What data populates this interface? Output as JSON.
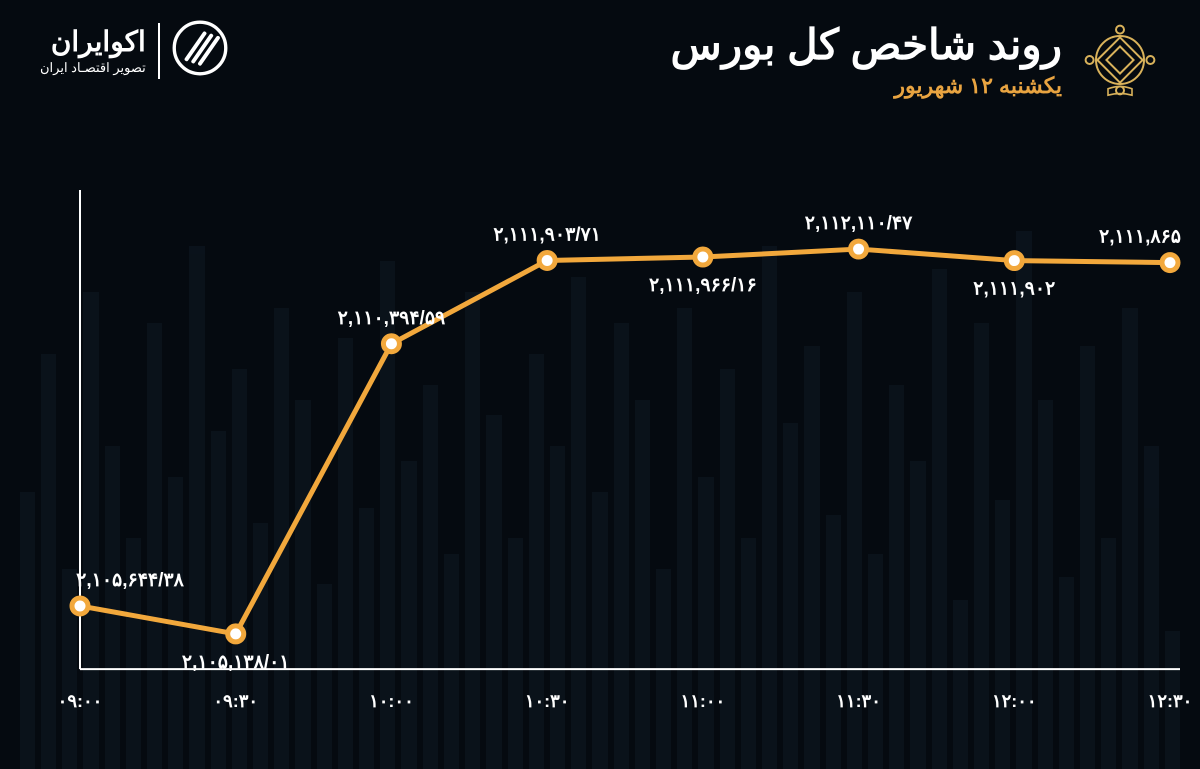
{
  "background_color": "#050a10",
  "bg_bar_color": "#1a2a3a",
  "brand": {
    "name": "اکوایران",
    "tagline": "تصویر اقتصـاد ایران"
  },
  "title": "روند شاخص کل بورس",
  "subtitle": "یکشنبه ۱۲ شهریور",
  "title_color": "#ffffff",
  "subtitle_color": "#e9a441",
  "seo_logo_color": "#d9b25b",
  "chart": {
    "type": "line",
    "line_color": "#f2a83c",
    "line_width": 5,
    "marker_fill": "#ffffff",
    "marker_stroke": "#f2a83c",
    "marker_radius": 8,
    "axis_color": "#ffffff",
    "label_color": "#ffffff",
    "xlabel_color": "#ffffff",
    "y_min": 2104500,
    "y_max": 2113000,
    "x_labels": [
      "۰۹:۰۰",
      "۰۹:۳۰",
      "۱۰:۰۰",
      "۱۰:۳۰",
      "۱۱:۰۰",
      "۱۱:۳۰",
      "۱۲:۰۰",
      "۱۲:۳۰"
    ],
    "points": [
      {
        "value": 2105644.38,
        "label": "۲,۱۰۵,۶۴۴/۳۸",
        "label_pos": "above-left"
      },
      {
        "value": 2105138.01,
        "label": "۲,۱۰۵,۱۳۸/۰۱",
        "label_pos": "below"
      },
      {
        "value": 2110394.59,
        "label": "۲,۱۱۰,۳۹۴/۵۹",
        "label_pos": "above-left"
      },
      {
        "value": 2111903.71,
        "label": "۲,۱۱۱,۹۰۳/۷۱",
        "label_pos": "above"
      },
      {
        "value": 2111966.16,
        "label": "۲,۱۱۱,۹۶۶/۱۶",
        "label_pos": "below"
      },
      {
        "value": 2112110.47,
        "label": "۲,۱۱۲,۱۱۰/۴۷",
        "label_pos": "above"
      },
      {
        "value": 2111902.0,
        "label": "۲,۱۱۱,۹۰۲",
        "label_pos": "below"
      },
      {
        "value": 2111865.0,
        "label": "۲,۱۱۱,۸۶۵",
        "label_pos": "above"
      }
    ]
  },
  "bg_bar_heights_pct": [
    18,
    42,
    60,
    30,
    55,
    25,
    48,
    70,
    35,
    58,
    22,
    65,
    40,
    50,
    28,
    62,
    33,
    55,
    45,
    68,
    30,
    52,
    38,
    60,
    26,
    48,
    58,
    36,
    64,
    42,
    54,
    30,
    46,
    62,
    28,
    50,
    40,
    66,
    34,
    56,
    24,
    48,
    60,
    32,
    52,
    44,
    68,
    38,
    58,
    30,
    42,
    62,
    26,
    54,
    36
  ]
}
